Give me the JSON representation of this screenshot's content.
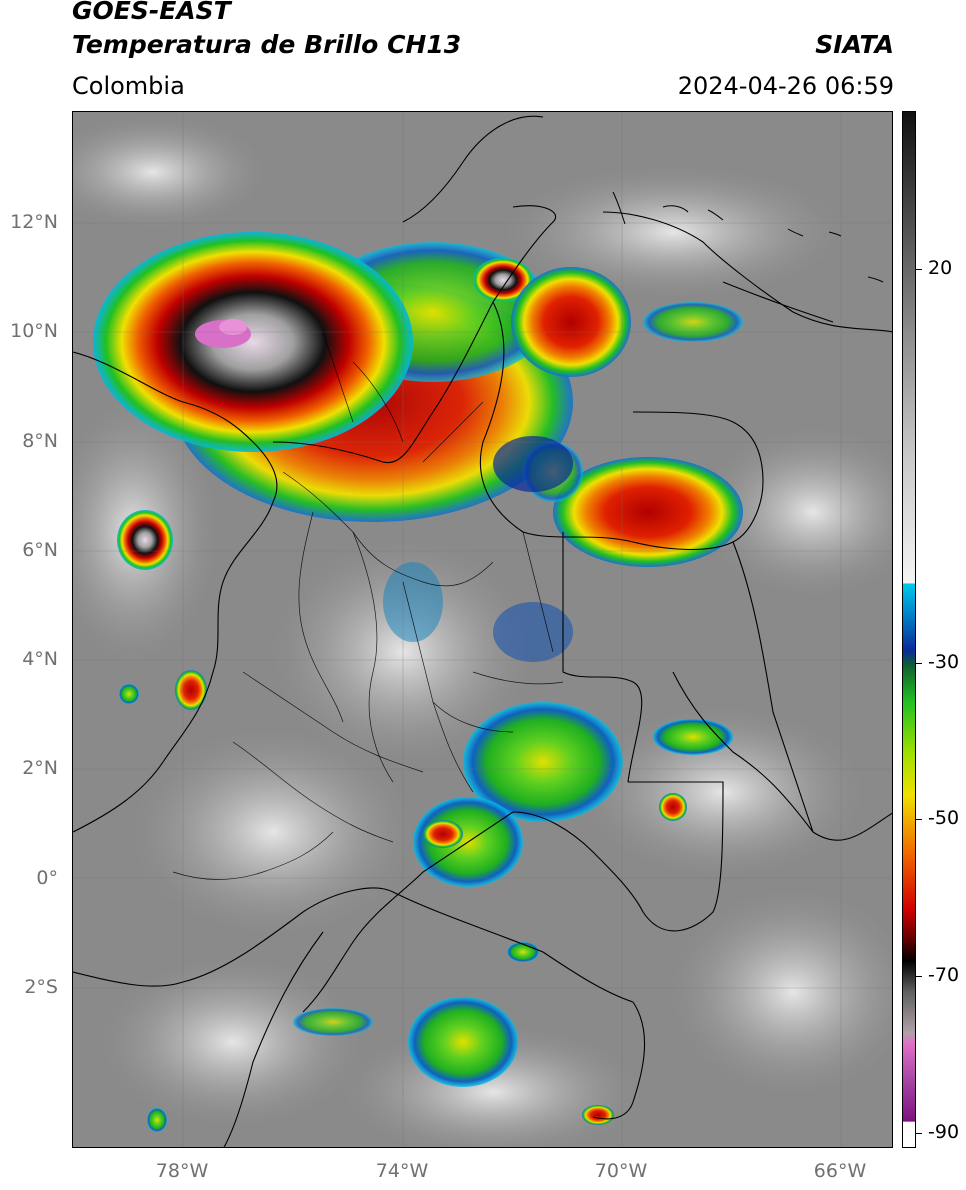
{
  "header": {
    "satellite": "GOES-EAST",
    "product": "Temperatura de Brillo CH13",
    "organization": "SIATA",
    "region": "Colombia",
    "datetime": "2024-04-26 06:59"
  },
  "axes": {
    "lat_labels": [
      "12°N",
      "10°N",
      "8°N",
      "6°N",
      "4°N",
      "2°N",
      "0°",
      "2°S"
    ],
    "lon_labels": [
      "78°W",
      "74°W",
      "70°W",
      "66°W"
    ]
  },
  "colorbar": {
    "tick_labels": [
      "20",
      "-30",
      "-50",
      "-70",
      "-90"
    ],
    "colors": {
      "warm_gray_top": "#222222",
      "cold_cyan": "#00c8e8",
      "blue": "#0a2a9a",
      "green": "#22c022",
      "yellow": "#f0e000",
      "orange": "#f07000",
      "red": "#d00000",
      "black": "#000000",
      "magenta": "#e070c8",
      "purple": "#801080"
    }
  }
}
